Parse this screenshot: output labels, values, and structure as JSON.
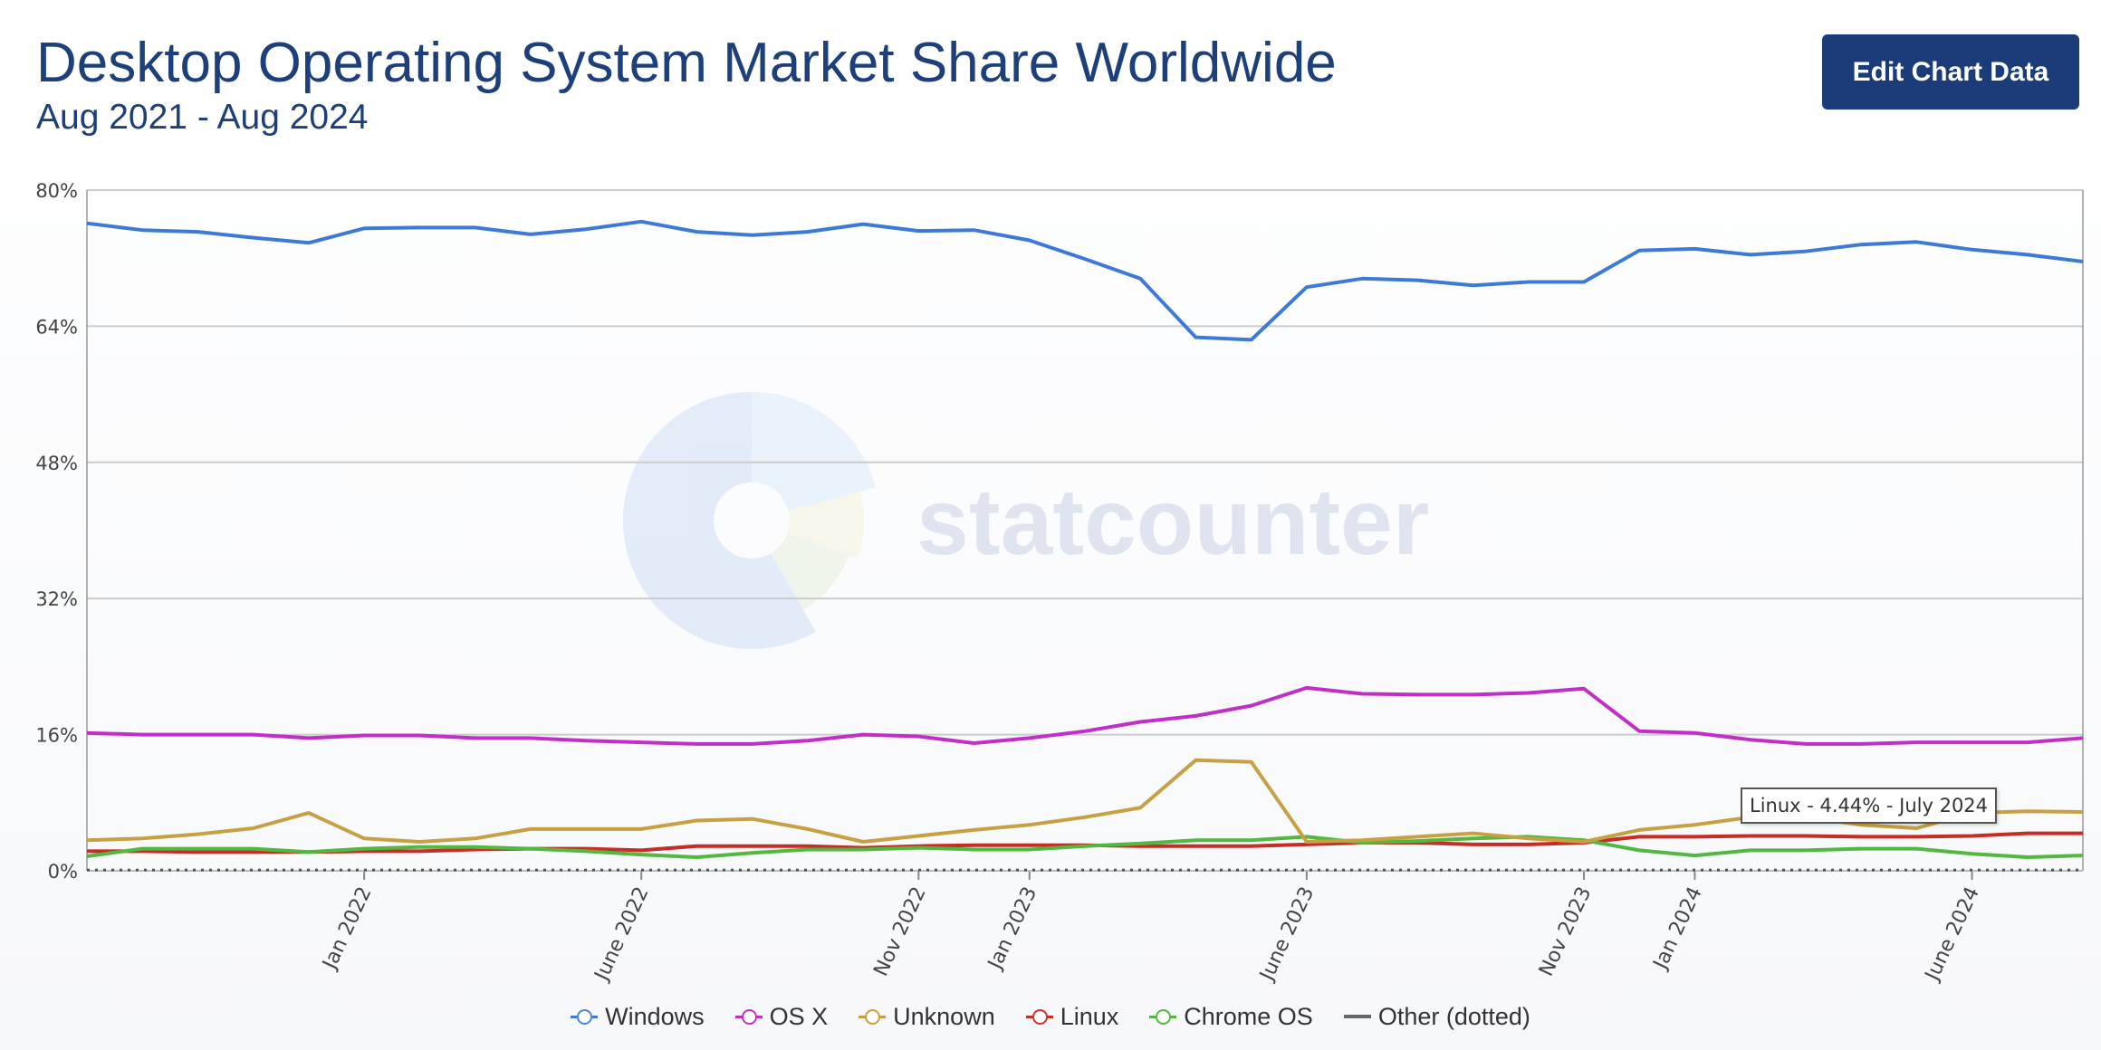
{
  "header": {
    "title": "Desktop Operating System Market Share Worldwide",
    "subtitle": "Aug 2021 - Aug 2024",
    "edit_button": "Edit Chart Data"
  },
  "watermark": {
    "text": "statcounter",
    "color": "#c9d3e6"
  },
  "tooltip": {
    "text": "Linux - 4.44% - July 2024"
  },
  "colors": {
    "grid": "#cccccc",
    "axis_text": "#444444",
    "plot_border": "#999999"
  },
  "chart_data": {
    "type": "line",
    "title": "Desktop Operating System Market Share Worldwide",
    "subtitle": "Aug 2021 - Aug 2024",
    "x": [
      "2021-08",
      "2021-09",
      "2021-10",
      "2021-11",
      "2021-12",
      "2022-01",
      "2022-02",
      "2022-03",
      "2022-04",
      "2022-05",
      "2022-06",
      "2022-07",
      "2022-08",
      "2022-09",
      "2022-10",
      "2022-11",
      "2022-12",
      "2023-01",
      "2023-02",
      "2023-03",
      "2023-04",
      "2023-05",
      "2023-06",
      "2023-07",
      "2023-08",
      "2023-09",
      "2023-10",
      "2023-11",
      "2023-12",
      "2024-01",
      "2024-02",
      "2024-03",
      "2024-04",
      "2024-05",
      "2024-06",
      "2024-07",
      "2024-08"
    ],
    "x_tick_labels": [
      {
        "index": 5,
        "label": "Jan 2022"
      },
      {
        "index": 10,
        "label": "June 2022"
      },
      {
        "index": 15,
        "label": "Nov 2022"
      },
      {
        "index": 17,
        "label": "Jan 2023"
      },
      {
        "index": 22,
        "label": "June 2023"
      },
      {
        "index": 27,
        "label": "Nov 2023"
      },
      {
        "index": 29,
        "label": "Jan 2024"
      },
      {
        "index": 34,
        "label": "June 2024"
      }
    ],
    "y_ticks": [
      "0%",
      "16%",
      "32%",
      "48%",
      "64%",
      "80%"
    ],
    "ylim": [
      0,
      80
    ],
    "y_unit": "%",
    "grid": true,
    "legend_position": "bottom-center",
    "series": [
      {
        "name": "Windows",
        "color": "#3c7ad6",
        "marker_color": "#4a86e0",
        "values": [
          76.1,
          75.3,
          75.1,
          74.4,
          73.8,
          75.5,
          75.6,
          75.6,
          74.8,
          75.4,
          76.3,
          75.1,
          74.7,
          75.1,
          76.0,
          75.2,
          75.3,
          74.1,
          71.9,
          69.6,
          62.7,
          62.4,
          68.6,
          69.6,
          69.4,
          68.8,
          69.2,
          69.2,
          72.9,
          73.1,
          72.4,
          72.8,
          73.6,
          73.9,
          73.0,
          72.4,
          71.6
        ],
        "dotted": false
      },
      {
        "name": "OS X",
        "color": "#c130c6",
        "marker_color": "#c130c6",
        "values": [
          16.2,
          16.0,
          16.0,
          16.0,
          15.6,
          15.9,
          15.9,
          15.6,
          15.6,
          15.3,
          15.1,
          14.9,
          14.9,
          15.3,
          16.0,
          15.8,
          15.0,
          15.6,
          16.4,
          17.5,
          18.2,
          19.4,
          21.5,
          20.8,
          20.7,
          20.7,
          20.9,
          21.4,
          16.4,
          16.2,
          15.4,
          14.9,
          14.9,
          15.1,
          15.1,
          15.1,
          15.6
        ],
        "dotted": false
      },
      {
        "name": "Unknown",
        "color": "#c7a043",
        "marker_color": "#c7a043",
        "values": [
          3.6,
          3.8,
          4.3,
          5.0,
          6.8,
          3.8,
          3.4,
          3.8,
          4.9,
          4.9,
          4.9,
          5.9,
          6.1,
          4.9,
          3.4,
          4.1,
          4.8,
          5.4,
          6.3,
          7.4,
          13.0,
          12.8,
          3.4,
          3.6,
          4.0,
          4.4,
          3.8,
          3.4,
          4.8,
          5.4,
          6.3,
          6.3,
          5.4,
          5.0,
          6.8,
          7.0,
          6.9
        ],
        "dotted": false
      },
      {
        "name": "Linux",
        "color": "#c62d26",
        "marker_color": "#d0322a",
        "values": [
          2.3,
          2.3,
          2.2,
          2.2,
          2.2,
          2.3,
          2.3,
          2.5,
          2.6,
          2.6,
          2.4,
          2.9,
          2.9,
          2.9,
          2.7,
          2.9,
          3.0,
          3.0,
          3.0,
          2.9,
          2.9,
          2.9,
          3.1,
          3.3,
          3.3,
          3.1,
          3.1,
          3.3,
          4.0,
          4.0,
          4.1,
          4.1,
          4.0,
          4.0,
          4.1,
          4.4,
          4.4
        ],
        "dotted": false
      },
      {
        "name": "Chrome OS",
        "color": "#52b840",
        "marker_color": "#52b840",
        "values": [
          1.7,
          2.6,
          2.6,
          2.6,
          2.2,
          2.6,
          2.8,
          2.8,
          2.6,
          2.3,
          1.9,
          1.6,
          2.1,
          2.5,
          2.5,
          2.7,
          2.5,
          2.5,
          2.9,
          3.2,
          3.6,
          3.6,
          4.0,
          3.3,
          3.5,
          3.8,
          4.0,
          3.6,
          2.4,
          1.8,
          2.4,
          2.4,
          2.6,
          2.6,
          2.0,
          1.6,
          1.8
        ],
        "dotted": false
      },
      {
        "name": "Other (dotted)",
        "color": "#555555",
        "marker_color": "#555555",
        "values": [
          0.1,
          0.1,
          0.1,
          0.1,
          0.1,
          0.1,
          0.1,
          0.1,
          0.1,
          0.1,
          0.1,
          0.1,
          0.1,
          0.1,
          0.1,
          0.1,
          0.1,
          0.1,
          0.1,
          0.1,
          0.1,
          0.1,
          0.1,
          0.1,
          0.1,
          0.1,
          0.1,
          0.1,
          0.1,
          0.1,
          0.1,
          0.1,
          0.1,
          0.1,
          0.1,
          0.1,
          0.1
        ],
        "dotted": true
      }
    ]
  }
}
